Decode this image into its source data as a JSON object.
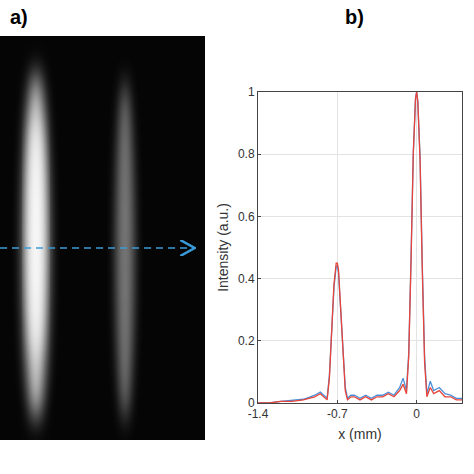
{
  "panel_labels": [
    "a)",
    "b)"
  ],
  "chart_data": {
    "type": "line",
    "xlabel": "x (mm)",
    "ylabel": "Intensity (a.u.)",
    "x": [
      -1.4,
      -1.3,
      -1.2,
      -1.1,
      -1.0,
      -0.95,
      -0.9,
      -0.85,
      -0.82,
      -0.79,
      -0.77,
      -0.75,
      -0.73,
      -0.71,
      -0.7,
      -0.69,
      -0.67,
      -0.65,
      -0.63,
      -0.61,
      -0.58,
      -0.55,
      -0.5,
      -0.45,
      -0.4,
      -0.35,
      -0.3,
      -0.25,
      -0.2,
      -0.15,
      -0.12,
      -0.09,
      -0.07,
      -0.05,
      -0.03,
      -0.01,
      0,
      0.01,
      0.03,
      0.05,
      0.07,
      0.09,
      0.12,
      0.15,
      0.2,
      0.25,
      0.3,
      0.35,
      0.4
    ],
    "series": [
      {
        "color": "#4a90d9",
        "values": [
          0,
          0,
          0.005,
          0.008,
          0.012,
          0.018,
          0.025,
          0.035,
          0.025,
          0.015,
          0.09,
          0.23,
          0.37,
          0.44,
          0.44,
          0.42,
          0.3,
          0.15,
          0.05,
          0.015,
          0.025,
          0.025,
          0.015,
          0.025,
          0.015,
          0.025,
          0.025,
          0.035,
          0.025,
          0.05,
          0.08,
          0.04,
          0.16,
          0.46,
          0.8,
          0.98,
          1,
          0.97,
          0.79,
          0.44,
          0.15,
          0.03,
          0.07,
          0.04,
          0.05,
          0.03,
          0.025,
          0.015,
          0.015
        ]
      },
      {
        "color": "#e8443a",
        "values": [
          0,
          0,
          0.005,
          0.005,
          0.01,
          0.015,
          0.02,
          0.03,
          0.02,
          0.01,
          0.08,
          0.22,
          0.38,
          0.45,
          0.45,
          0.43,
          0.3,
          0.14,
          0.04,
          0.01,
          0.02,
          0.02,
          0.01,
          0.02,
          0.01,
          0.02,
          0.02,
          0.03,
          0.02,
          0.04,
          0.06,
          0.03,
          0.15,
          0.45,
          0.8,
          0.98,
          1,
          0.97,
          0.78,
          0.42,
          0.13,
          0.02,
          0.05,
          0.03,
          0.04,
          0.02,
          0.02,
          0.01,
          0.01
        ]
      }
    ],
    "xlim": [
      -1.4,
      0.4
    ],
    "xticks": [
      -1.4,
      -0.7,
      0
    ],
    "ylim": [
      0,
      1
    ],
    "yticks": [
      0,
      0.2,
      0.4,
      0.6,
      0.8,
      1
    ],
    "grid": true
  }
}
